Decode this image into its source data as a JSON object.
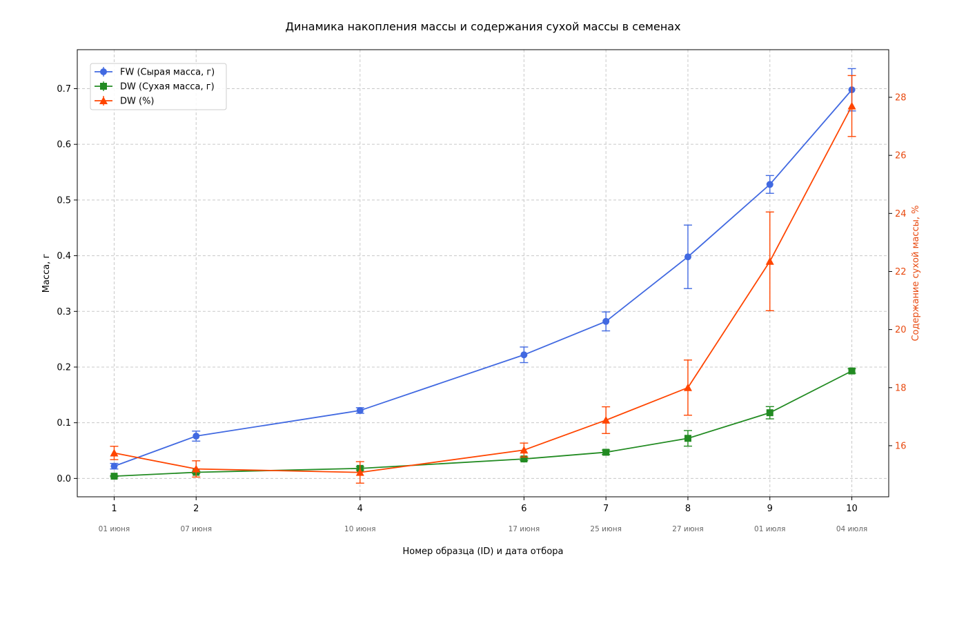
{
  "chart_data": {
    "type": "line",
    "title": "Динамика накопления массы и содержания сухой массы в семенах",
    "xlabel": "Номер образца (ID) и дата отбора",
    "ylabel_left": "Масса, г",
    "ylabel_right": "Содержание сухой массы, %",
    "x": [
      1,
      2,
      4,
      6,
      7,
      8,
      9,
      10
    ],
    "x_ticks": [
      "1",
      "2",
      "4",
      "6",
      "7",
      "8",
      "9",
      "10"
    ],
    "x_dates": [
      "01 июня",
      "07 июня",
      "10 июня",
      "17 июня",
      "25 июня",
      "27 июня",
      "01 июля",
      "04 июля"
    ],
    "xlim": [
      0.55,
      10.45
    ],
    "ylim_left": [
      -0.033,
      0.77
    ],
    "ylim_right": [
      14.24,
      29.64
    ],
    "y_ticks_left": [
      "0.0",
      "0.1",
      "0.2",
      "0.3",
      "0.4",
      "0.5",
      "0.6",
      "0.7"
    ],
    "y_ticks_right": [
      "16",
      "18",
      "20",
      "22",
      "24",
      "26",
      "28"
    ],
    "grid": true,
    "legend_position": "upper-left",
    "series": [
      {
        "name": "FW (Сырая масса, г)",
        "axis": "left",
        "marker": "circle",
        "color": "#4169e1",
        "values": [
          0.022,
          0.076,
          0.122,
          0.222,
          0.282,
          0.398,
          0.528,
          0.698
        ],
        "errors": [
          0.005,
          0.009,
          0.005,
          0.014,
          0.017,
          0.057,
          0.016,
          0.038
        ]
      },
      {
        "name": "DW (Сухая масса, г)",
        "axis": "left",
        "marker": "square",
        "color": "#228b22",
        "values": [
          0.004,
          0.011,
          0.018,
          0.035,
          0.047,
          0.072,
          0.118,
          0.193
        ],
        "errors": [
          0.001,
          0.002,
          0.003,
          0.003,
          0.004,
          0.014,
          0.011,
          0.004
        ]
      },
      {
        "name": "DW (%)",
        "axis": "right",
        "marker": "triangle",
        "color": "#ff4500",
        "values": [
          15.75,
          15.2,
          15.08,
          15.85,
          16.88,
          18.0,
          22.35,
          27.7
        ],
        "errors": [
          0.23,
          0.28,
          0.37,
          0.24,
          0.46,
          0.95,
          1.7,
          1.05
        ]
      }
    ]
  }
}
